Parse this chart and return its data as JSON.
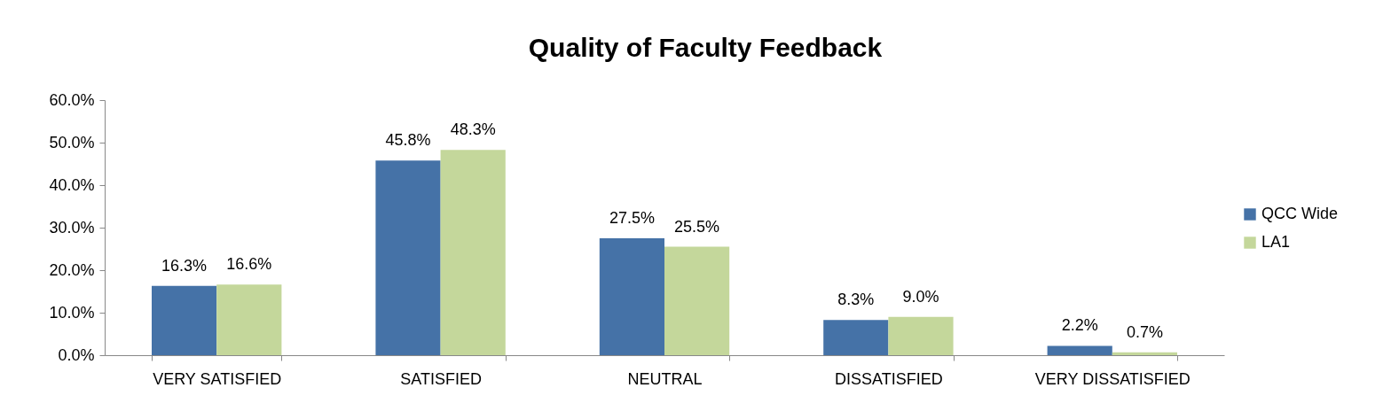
{
  "chart_data": {
    "type": "bar",
    "title": "Quality of Faculty Feedback",
    "categories": [
      "VERY SATISFIED",
      "SATISFIED",
      "NEUTRAL",
      "DISSATISFIED",
      "VERY DISSATISFIED"
    ],
    "series": [
      {
        "name": "QCC Wide",
        "color": "#4572a7",
        "values": [
          16.3,
          45.8,
          27.5,
          8.3,
          2.2
        ],
        "value_labels": [
          "16.3%",
          "45.8%",
          "27.5%",
          "8.3%",
          "2.2%"
        ]
      },
      {
        "name": "LA1",
        "color": "#c4d79b",
        "values": [
          16.6,
          48.3,
          25.5,
          9.0,
          0.7
        ],
        "value_labels": [
          "16.6%",
          "48.3%",
          "25.5%",
          "9.0%",
          "0.7%"
        ]
      }
    ],
    "ylim": [
      0,
      60
    ],
    "yticks": [
      {
        "value": 0,
        "label": "0.0%"
      },
      {
        "value": 10,
        "label": "10.0%"
      },
      {
        "value": 20,
        "label": "20.0%"
      },
      {
        "value": 30,
        "label": "30.0%"
      },
      {
        "value": 40,
        "label": "40.0%"
      },
      {
        "value": 50,
        "label": "50.0%"
      },
      {
        "value": 60,
        "label": "60.0%"
      }
    ],
    "grid": false,
    "legend": "right"
  }
}
